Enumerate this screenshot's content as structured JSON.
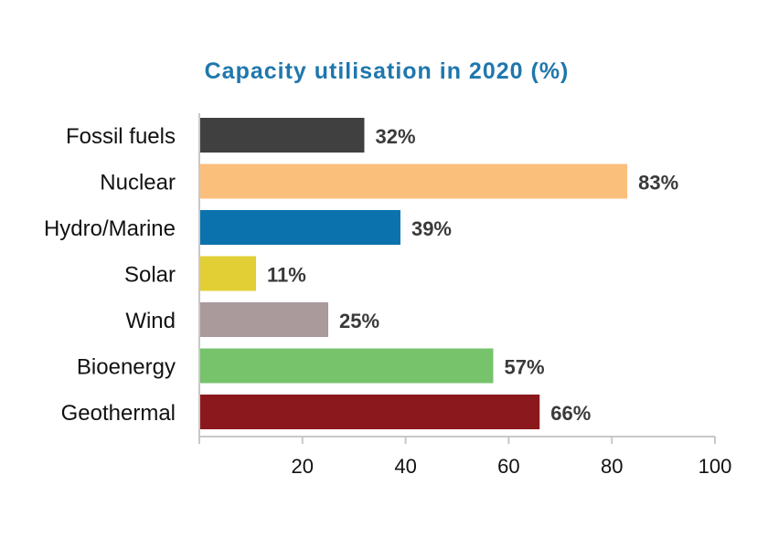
{
  "chart_data": {
    "type": "bar",
    "orientation": "horizontal",
    "title": "Capacity utilisation in 2020 (%)",
    "title_color": "#1f77ad",
    "categories": [
      "Fossil fuels",
      "Nuclear",
      "Hydro/Marine",
      "Solar",
      "Wind",
      "Bioenergy",
      "Geothermal"
    ],
    "values": [
      32,
      83,
      39,
      11,
      25,
      57,
      66
    ],
    "value_labels": [
      "32%",
      "83%",
      "39%",
      "11%",
      "25%",
      "57%",
      "66%"
    ],
    "colors": [
      "#404040",
      "#fbbf7c",
      "#0b72ad",
      "#e2cf35",
      "#aa9a9c",
      "#76c36b",
      "#8b181d"
    ],
    "xlim": [
      0,
      100
    ],
    "x_ticks": [
      20,
      40,
      60,
      80,
      100
    ],
    "x_tick_labels": [
      "20",
      "40",
      "60",
      "80",
      "100"
    ],
    "xlabel": "",
    "ylabel": "",
    "grid": false,
    "legend": "none"
  }
}
